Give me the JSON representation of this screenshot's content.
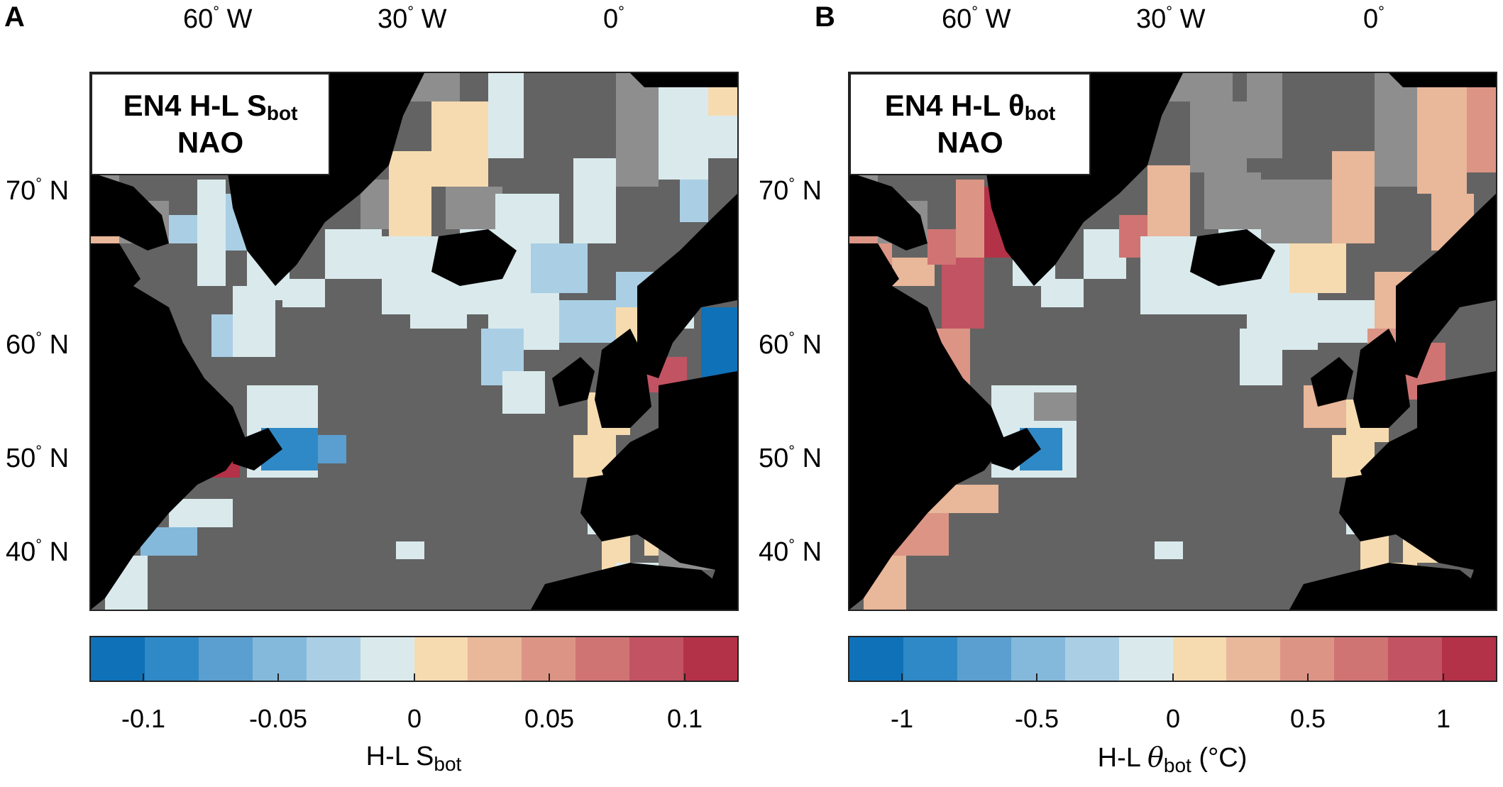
{
  "colors": {
    "ocean": "#636363",
    "land": "#000000",
    "shelf_gray": "#8e8e8e",
    "scale": [
      "#0f71b8",
      "#2f89c6",
      "#5a9fd0",
      "#84b9dc",
      "#aacfe5",
      "#daeaec",
      "#f6dbb0",
      "#e9b79a",
      "#dc9585",
      "#cf7473",
      "#c25362",
      "#b43247"
    ]
  },
  "panels": [
    {
      "letter": "A",
      "title_line1": "EN4 H-L S",
      "title_sub": "bot",
      "title_line2": "NAO",
      "colorbar": {
        "ticks": [
          "-0.1",
          "-0.05",
          "0",
          "0.05",
          "0.1"
        ],
        "title": "H-L S",
        "title_sub": "bot",
        "title_suffix": ""
      }
    },
    {
      "letter": "B",
      "title_line1": "EN4 H-L θ",
      "title_sub": "bot",
      "title_line2": "NAO",
      "colorbar": {
        "ticks": [
          "-1",
          "-0.5",
          "0",
          "0.5",
          "1"
        ],
        "title": "H-L ",
        "title_italic": "θ",
        "title_sub": "bot",
        "title_suffix": " (°C)"
      }
    }
  ],
  "axes": {
    "lon": [
      {
        "value": "60",
        "hemi": "W"
      },
      {
        "value": "30",
        "hemi": "W"
      },
      {
        "value": "0",
        "hemi": ""
      }
    ],
    "lat": [
      {
        "value": "70",
        "hemi": "N"
      },
      {
        "value": "60",
        "hemi": "N"
      },
      {
        "value": "50",
        "hemi": "N"
      },
      {
        "value": "40",
        "hemi": "N"
      }
    ]
  }
}
